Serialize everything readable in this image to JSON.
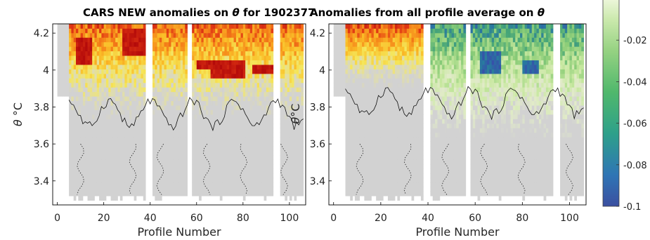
{
  "chart_data": [
    {
      "type": "heatmap",
      "title_html": "CARS NEW anomalies on <tspan font-style='italic'>θ</tspan> for 1902377",
      "title": "CARS NEW anomalies on θ for 1902377",
      "xlabel": "Profile Number",
      "ylabel": "θ °C",
      "xlim": [
        -2,
        107
      ],
      "ylim": [
        3.27,
        4.25
      ],
      "xticks": [
        0,
        20,
        40,
        60,
        80,
        100
      ],
      "yticks": [
        3.4,
        3.6,
        3.8,
        4.0,
        4.2
      ],
      "ytick_labels": [
        "3.4",
        "3.6",
        "3.8",
        "4",
        "4.2"
      ],
      "no_data_profiles": [
        [
          0,
          5
        ],
        [
          38,
          41
        ],
        [
          56,
          58
        ],
        [
          93,
          96
        ]
      ],
      "colormap": "warm (yellow → orange → red), positive anomalies",
      "hot_spots": [
        {
          "x": [
            8,
            14
          ],
          "y": [
            4.02,
            4.18
          ]
        },
        {
          "x": [
            28,
            38
          ],
          "y": [
            4.08,
            4.22
          ]
        },
        {
          "x": [
            60,
            66
          ],
          "y": [
            4.0,
            4.06
          ]
        },
        {
          "x": [
            66,
            80
          ],
          "y": [
            3.96,
            4.06
          ]
        },
        {
          "x": [
            84,
            94
          ],
          "y": [
            3.97,
            4.04
          ]
        }
      ]
    },
    {
      "type": "heatmap",
      "title_html": "Anomalies from all profile average on <tspan font-style='italic'>θ</tspan>",
      "title": "Anomalies from all profile average on θ",
      "xlabel": "Profile Number",
      "ylabel": "",
      "xlim": [
        -2,
        107
      ],
      "ylim": [
        3.27,
        4.25
      ],
      "xticks": [
        0,
        20,
        40,
        60,
        80,
        100
      ],
      "yticks": [
        3.4,
        3.6,
        3.8,
        4.0,
        4.2
      ],
      "ytick_labels": [
        "3.4",
        "3.6",
        "3.8",
        "4",
        "4.2"
      ],
      "no_data_profiles": [
        [
          0,
          5
        ],
        [
          38,
          41
        ],
        [
          56,
          58
        ],
        [
          93,
          96
        ]
      ],
      "colorbar": {
        "ticks": [
          -0.1,
          -0.08,
          -0.06,
          -0.04,
          -0.02
        ],
        "tick_labels": [
          "-0.1",
          "-0.08",
          "-0.06",
          "-0.04",
          "-0.02"
        ],
        "range": [
          -0.1,
          0.0
        ]
      },
      "cold_spots": [
        {
          "x": [
            62,
            70
          ],
          "y": [
            3.98,
            4.1
          ]
        },
        {
          "x": [
            80,
            86
          ],
          "y": [
            3.98,
            4.06
          ]
        }
      ]
    }
  ]
}
